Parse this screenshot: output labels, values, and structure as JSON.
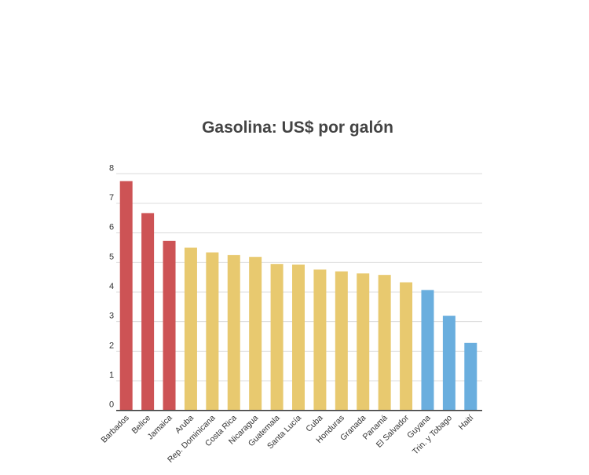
{
  "chart_data": {
    "type": "bar",
    "title": "Gasolina: US$ por galón",
    "xlabel": "",
    "ylabel": "",
    "ylim": [
      0,
      8
    ],
    "yticks": [
      "0",
      "1",
      "2",
      "3",
      "4",
      "5",
      "6",
      "7",
      "8"
    ],
    "grid": true,
    "legend": "none",
    "categories": [
      "Barbados",
      "Belice",
      "Jamaica",
      "Aruba",
      "Rep. Dominicana",
      "Costa Rica",
      "Nicaragua",
      "Guatemala",
      "Santa Lucía",
      "Cuba",
      "Honduras",
      "Granada",
      "Panamá",
      "El Salvador",
      "Guyana",
      "Trin. y Tobago",
      "Haití"
    ],
    "values": [
      7.75,
      6.67,
      5.73,
      5.5,
      5.34,
      5.25,
      5.19,
      4.95,
      4.93,
      4.76,
      4.7,
      4.63,
      4.58,
      4.33,
      4.07,
      3.2,
      2.28
    ],
    "bar_colors": [
      "#cd5355",
      "#cd5355",
      "#cd5355",
      "#e8c96f",
      "#e8c96f",
      "#e8c96f",
      "#e8c96f",
      "#e8c96f",
      "#e8c96f",
      "#e8c96f",
      "#e8c96f",
      "#e8c96f",
      "#e8c96f",
      "#e8c96f",
      "#6aaede",
      "#6aaede",
      "#6aaede"
    ]
  }
}
